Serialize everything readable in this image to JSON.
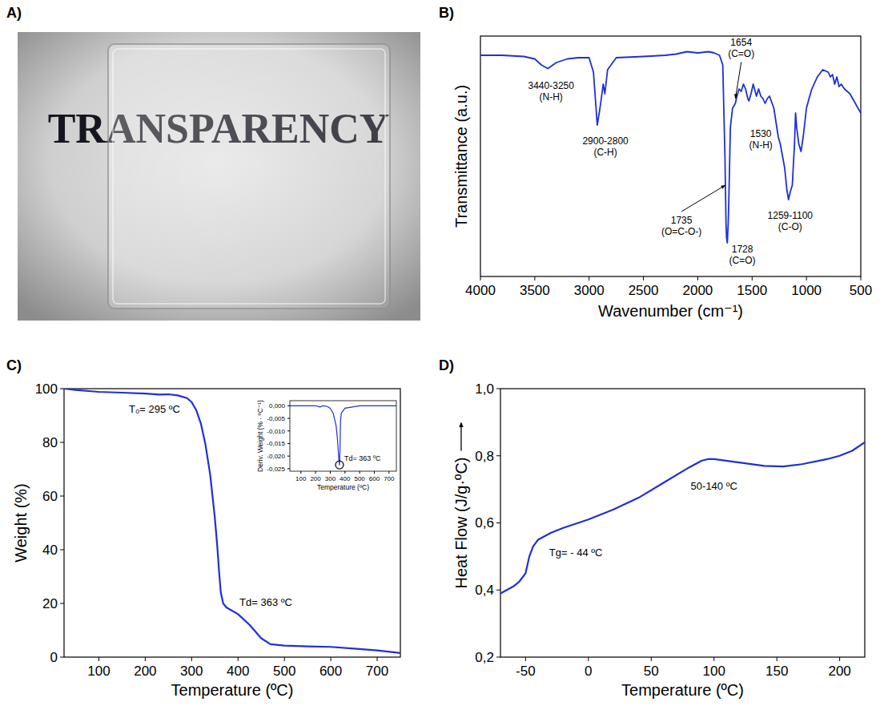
{
  "panels": {
    "letters": [
      "A)",
      "B)",
      "C)",
      "D)"
    ]
  },
  "photo": {
    "text": "TRANSPARENCY"
  },
  "chart_data": [
    {
      "type": "line",
      "x_label": "Wavenumber (cm⁻¹)",
      "y_label": "Transmittance (a.u.)",
      "x": [
        4000,
        3800,
        3600,
        3500,
        3440,
        3380,
        3300,
        3200,
        3100,
        3000,
        2960,
        2925,
        2900,
        2870,
        2855,
        2830,
        2750,
        2500,
        2300,
        2200,
        2100,
        2000,
        1900,
        1850,
        1800,
        1770,
        1750,
        1740,
        1735,
        1728,
        1720,
        1715,
        1700,
        1680,
        1654,
        1640,
        1620,
        1600,
        1580,
        1560,
        1540,
        1530,
        1510,
        1490,
        1460,
        1440,
        1420,
        1400,
        1380,
        1360,
        1340,
        1300,
        1259,
        1240,
        1220,
        1200,
        1180,
        1165,
        1150,
        1130,
        1110,
        1100,
        1090,
        1070,
        1050,
        1030,
        1000,
        970,
        950,
        900,
        850,
        800,
        780,
        760,
        740,
        720,
        700,
        680,
        650,
        600,
        550,
        500
      ],
      "series": [
        {
          "color": "#1f2fd8",
          "values": [
            92,
            92,
            91.5,
            90.5,
            88,
            86.5,
            89,
            90.5,
            91,
            91,
            85,
            63,
            70,
            80,
            76,
            86,
            91,
            91.5,
            92,
            92.5,
            93.5,
            93,
            93.5,
            93,
            92,
            88,
            50,
            22,
            16,
            14,
            22,
            30,
            62,
            70,
            72,
            75,
            78,
            77,
            80,
            78,
            74,
            73,
            76,
            80,
            75,
            78,
            75,
            74,
            72,
            74,
            75,
            70,
            58,
            55,
            50,
            45,
            36,
            32,
            35,
            38,
            55,
            68,
            62,
            55,
            52,
            58,
            70,
            75,
            78,
            83,
            86,
            85,
            83,
            84,
            80,
            83,
            79,
            80,
            78,
            76,
            72,
            68
          ]
        }
      ],
      "xlim": [
        4000,
        500
      ],
      "xticks": [
        4000,
        3500,
        3000,
        2500,
        2000,
        1500,
        1000,
        500
      ],
      "ylim": [
        0,
        100
      ],
      "tick_labels": "x",
      "annotations": [
        {
          "text": [
            "3440-3250",
            "(N-H)"
          ],
          "x": 3350,
          "y": 78
        },
        {
          "text": [
            "2900-2800",
            "(C-H)"
          ],
          "x": 2850,
          "y": 55
        },
        {
          "text": [
            "1654",
            "(C=O)"
          ],
          "x": 1600,
          "y": 96,
          "arrow_to": [
            1654,
            74
          ]
        },
        {
          "text": [
            "1530",
            "(N-H)"
          ],
          "x": 1420,
          "y": 58
        },
        {
          "text": [
            "1735",
            "(O=C-O-)"
          ],
          "x": 2150,
          "y": 22,
          "arrow_to": [
            1745,
            38
          ]
        },
        {
          "text": [
            "1728",
            "(C=O)"
          ],
          "x": 1590,
          "y": 10
        },
        {
          "text": [
            "1259-1100",
            "(C-O)"
          ],
          "x": 1150,
          "y": 24
        }
      ]
    },
    {
      "type": "line",
      "x_label": "Temperature (ºC)",
      "y_label": "Weight (%)",
      "x": [
        25,
        50,
        100,
        150,
        200,
        230,
        250,
        270,
        290,
        300,
        310,
        320,
        330,
        340,
        350,
        355,
        360,
        363,
        368,
        375,
        400,
        425,
        450,
        470,
        500,
        550,
        600,
        650,
        700,
        750
      ],
      "series": [
        {
          "color": "#1f2fd8",
          "values": [
            100,
            99.5,
            98.8,
            98.5,
            98.2,
            97.8,
            97.9,
            97.5,
            96.5,
            95,
            92,
            87,
            79,
            68,
            52,
            42,
            30,
            24,
            20,
            18.5,
            16,
            12,
            7,
            4.8,
            4.3,
            4,
            3.8,
            3.2,
            2.5,
            1.5
          ]
        }
      ],
      "xlim": [
        25,
        750
      ],
      "xticks": [
        100,
        200,
        300,
        400,
        500,
        600,
        700
      ],
      "ylim": [
        0,
        100
      ],
      "yticks": [
        0,
        20,
        40,
        60,
        80,
        100
      ],
      "annotations": [
        {
          "text": [
            "T₀= 295 ºC"
          ],
          "x": 220,
          "y": 91
        },
        {
          "text": [
            "Td= 363 ºC"
          ],
          "x": 460,
          "y": 19
        }
      ]
    },
    {
      "type": "line",
      "x_label": "Temperature (ºC)",
      "y_label": "Deriv. Weight (% · ºC⁻¹)",
      "x": [
        25,
        100,
        200,
        230,
        250,
        280,
        300,
        320,
        340,
        350,
        358,
        363,
        366,
        370,
        375,
        400,
        450,
        500,
        600,
        750
      ],
      "series": [
        {
          "color": "#1f2fd8",
          "values": [
            0,
            0,
            0,
            -0.0005,
            0,
            -0.0003,
            -0.001,
            -0.003,
            -0.008,
            -0.014,
            -0.021,
            -0.0235,
            -0.018,
            -0.006,
            -0.003,
            -0.001,
            -0.0005,
            0,
            0,
            0
          ]
        }
      ],
      "xlim": [
        25,
        750
      ],
      "xticks": [
        100,
        200,
        300,
        400,
        500,
        600,
        700
      ],
      "ylim": [
        -0.026,
        0.002
      ],
      "yticks": [
        {
          "value": 0,
          "label": "0,000"
        },
        {
          "value": -0.005,
          "label": "-0,005"
        },
        {
          "value": -0.01,
          "label": "-0,010"
        },
        {
          "value": -0.015,
          "label": "-0,015"
        },
        {
          "value": -0.02,
          "label": "-0,020"
        },
        {
          "value": -0.025,
          "label": "-0,025"
        }
      ],
      "annotations": [
        {
          "text": [
            "Td= 363 ºC"
          ],
          "x": 520,
          "y": -0.022,
          "circle": [
            363,
            -0.0235
          ]
        }
      ]
    },
    {
      "type": "line",
      "x_label": "Temperature (ºC)",
      "y_label": "Heat Flow (J/g·ºC)",
      "x": [
        -70,
        -60,
        -55,
        -50,
        -47,
        -44,
        -40,
        -30,
        -20,
        0,
        20,
        40,
        60,
        80,
        90,
        95,
        100,
        120,
        140,
        155,
        170,
        190,
        200,
        210,
        220
      ],
      "series": [
        {
          "color": "#1f2fd8",
          "values": [
            0.39,
            0.41,
            0.425,
            0.45,
            0.5,
            0.53,
            0.55,
            0.57,
            0.585,
            0.61,
            0.64,
            0.675,
            0.72,
            0.765,
            0.785,
            0.79,
            0.79,
            0.78,
            0.77,
            0.768,
            0.775,
            0.79,
            0.8,
            0.815,
            0.84
          ]
        }
      ],
      "xlim": [
        -70,
        220
      ],
      "xticks": [
        -50,
        0,
        50,
        100,
        150,
        200
      ],
      "ylim": [
        0.2,
        1.0
      ],
      "yticks": [
        {
          "value": 0.2,
          "label": "0,2"
        },
        {
          "value": 0.4,
          "label": "0,4"
        },
        {
          "value": 0.6,
          "label": "0,6"
        },
        {
          "value": 0.8,
          "label": "0,8"
        },
        {
          "value": 1.0,
          "label": "1,0"
        }
      ],
      "annotations": [
        {
          "text": [
            "Tg= - 44 ºC"
          ],
          "x": -10,
          "y": 0.5
        },
        {
          "text": [
            "50-140 ºC"
          ],
          "x": 100,
          "y": 0.7
        }
      ]
    }
  ]
}
